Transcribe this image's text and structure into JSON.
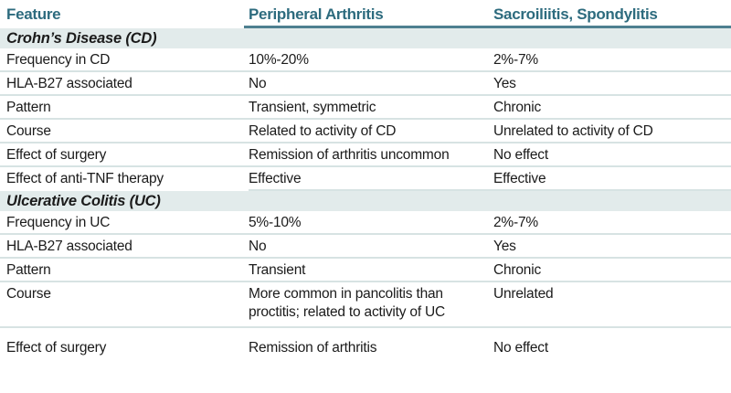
{
  "table": {
    "columns": [
      "Feature",
      "Peripheral Arthritis",
      "Sacroiliitis, Spondylitis"
    ],
    "sections": [
      {
        "title": "Crohn’s Disease (CD)",
        "rows": [
          [
            "Frequency in CD",
            "10%-20%",
            "2%-7%"
          ],
          [
            "HLA-B27 associated",
            "No",
            "Yes"
          ],
          [
            "Pattern",
            "Transient, symmetric",
            "Chronic"
          ],
          [
            "Course",
            "Related to activity of CD",
            "Unrelated to activity of CD"
          ],
          [
            "Effect of surgery",
            "Remission of arthritis uncommon",
            "No effect"
          ],
          [
            "Effect of anti-TNF therapy",
            "Effective",
            "Effective"
          ]
        ]
      },
      {
        "title": "Ulcerative Colitis (UC)",
        "rows": [
          [
            "Frequency in UC",
            "5%-10%",
            "2%-7%"
          ],
          [
            "HLA-B27 associated",
            "No",
            "Yes"
          ],
          [
            "Pattern",
            "Transient",
            "Chronic"
          ],
          [
            "Course",
            "More common in pancolitis than proctitis; related to activity of UC",
            "Unrelated"
          ],
          [
            "Effect of surgery",
            "Remission of arthritis",
            "No effect"
          ]
        ]
      }
    ]
  },
  "colors": {
    "header_text": "#2d6b7e",
    "header_rule": "#4e8090",
    "section_band_bg": "#e2ebeb",
    "row_separator": "#d7e3e3",
    "body_text": "#1b1b1b",
    "background": "#ffffff"
  }
}
